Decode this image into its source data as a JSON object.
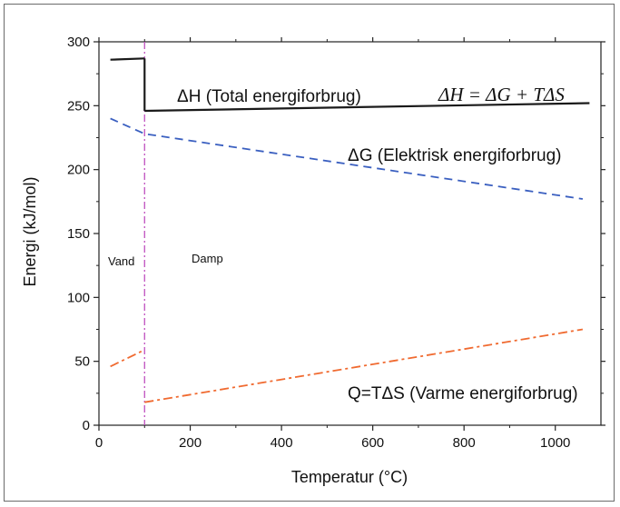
{
  "chart_data": {
    "type": "line",
    "title": "",
    "xlabel": "Temperatur (°C)",
    "ylabel": "Energi (kJ/mol)",
    "xlim": [
      0,
      1100
    ],
    "ylim": [
      0,
      300
    ],
    "xticks": [
      0,
      200,
      400,
      600,
      800,
      1000
    ],
    "yticks": [
      0,
      50,
      100,
      150,
      200,
      250,
      300
    ],
    "grid": false,
    "legend": "none",
    "phase_boundary": {
      "x": 100,
      "color": "#c050c0",
      "label_left": "Vand",
      "label_right": "Damp"
    },
    "series": [
      {
        "name": "ΔH (Total energiforbrug)",
        "style": "solid",
        "color": "#1a1a1a",
        "segments": [
          [
            [
              25,
              286
            ],
            [
              100,
              287
            ]
          ],
          [
            [
              100,
              246
            ],
            [
              1075,
              252
            ]
          ]
        ],
        "vertical_drop": [
          [
            100,
            287
          ],
          [
            100,
            246
          ]
        ]
      },
      {
        "name": "ΔG (Elektrisk energiforbrug)",
        "style": "dashed",
        "color": "#3a5fc0",
        "segments": [
          [
            [
              25,
              240
            ],
            [
              100,
              228
            ],
            [
              1060,
              177
            ]
          ]
        ]
      },
      {
        "name": "Q=TΔS (Varme energiforbrug)",
        "style": "dashdot",
        "color": "#f06a30",
        "segments": [
          [
            [
              25,
              46
            ],
            [
              100,
              59
            ]
          ],
          [
            [
              100,
              18
            ],
            [
              1060,
              75
            ]
          ]
        ]
      }
    ],
    "annotations": [
      {
        "text": "ΔH = ΔG + TΔS",
        "style": "formula"
      }
    ]
  }
}
